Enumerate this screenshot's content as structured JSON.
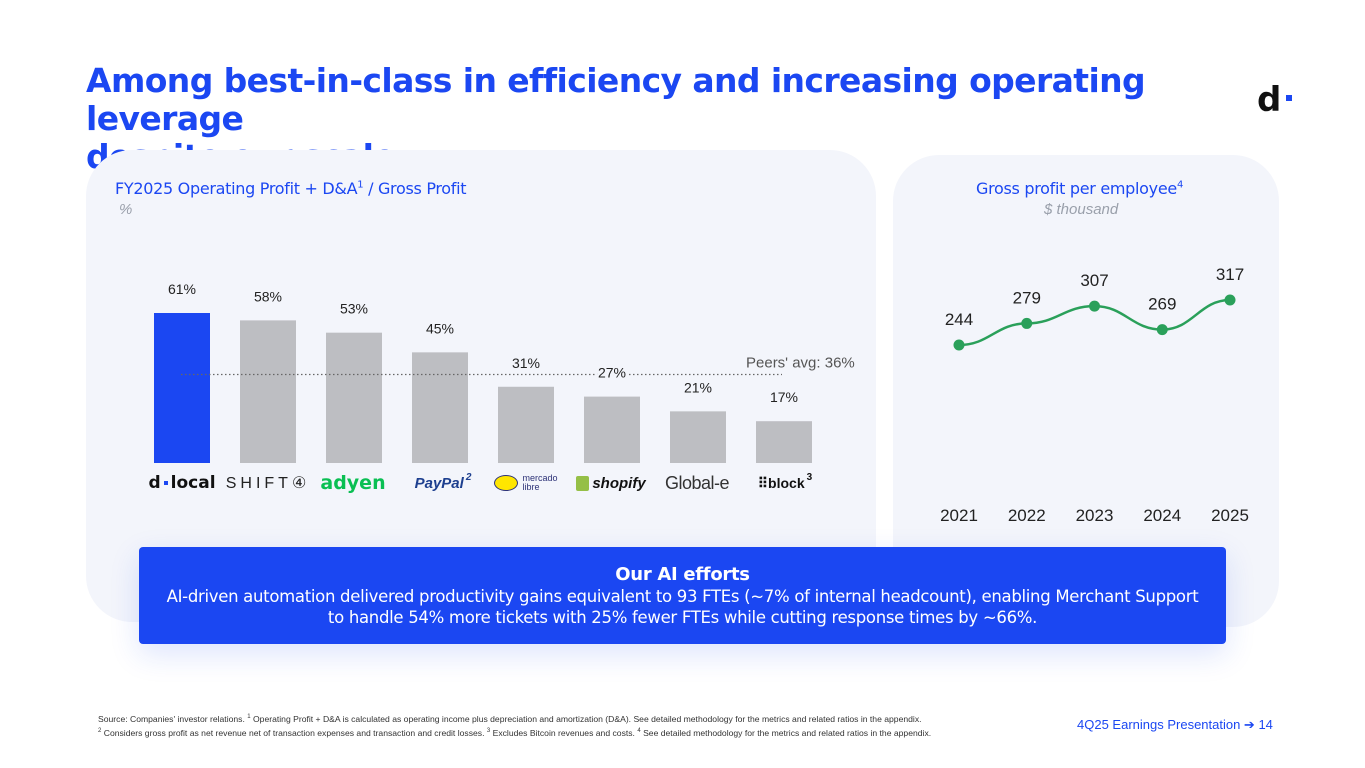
{
  "title": {
    "line1": "Among best-in-class in efficiency and increasing operating leverage",
    "line2": "despite our scale"
  },
  "logo": {
    "text": "d"
  },
  "left_chart": {
    "title": "FY2025 Operating Profit + D&A",
    "title_sup": "1",
    "title_suffix": " / Gross Profit",
    "unit": "%",
    "peers_avg_label": "Peers' avg: 36%"
  },
  "right_chart": {
    "title": "Gross profit per employee",
    "title_sup": "4",
    "unit": "$ thousand"
  },
  "brands": {
    "dlocal_a": "d",
    "dlocal_b": "local",
    "shift4": "SHIFT④",
    "adyen": "adyen",
    "paypal": "PayPal",
    "paypal_sup": "2",
    "mercado_a": "mercado",
    "mercado_b": "libre",
    "shopify": "shopify",
    "globale": "Global-e",
    "block": "⠿block",
    "block_sup": "3"
  },
  "ai_box": {
    "title": "Our AI efforts",
    "text": "AI-driven automation delivered productivity gains equivalent to 93 FTEs (~7% of internal headcount), enabling Merchant Support to handle 54% more tickets with 25% fewer FTEs while cutting response times by ~66%."
  },
  "footnote": {
    "a": "Source: Companies' investor relations. ",
    "sup1": "1",
    "b": " Operating Profit + D&A is calculated as operating income plus depreciation and amortization (D&A). See detailed methodology for the metrics and related ratios in the appendix.",
    "sup2": "2",
    "c": " Considers gross profit as net revenue net of transaction expenses and transaction and credit losses. ",
    "sup3": "3",
    "d": " Excludes Bitcoin revenues and costs. ",
    "sup4": "4",
    "e": " See detailed methodology for the metrics and related ratios in the appendix."
  },
  "page_ref": "4Q25 Earnings Presentation ➔  14",
  "colors": {
    "brand_blue": "#1b47f2",
    "bar_grey": "#bdbec2",
    "line_green": "#2aa05a",
    "panel_bg": "#f3f5fb"
  },
  "chart_data": [
    {
      "type": "bar",
      "title": "FY2025 Operating Profit + D&A / Gross Profit",
      "unit": "%",
      "categories": [
        "dLocal",
        "Shift4",
        "Adyen",
        "PayPal",
        "Mercado Libre",
        "Shopify",
        "Global-e",
        "Block"
      ],
      "values": [
        61,
        58,
        53,
        45,
        31,
        27,
        21,
        17
      ],
      "value_labels": [
        "61%",
        "58%",
        "53%",
        "45%",
        "31%",
        "27%",
        "21%",
        "17%"
      ],
      "highlight_index": 0,
      "reference_line": {
        "label": "Peers' avg: 36%",
        "value": 36,
        "style": "dotted"
      },
      "ylim": [
        0,
        61
      ],
      "grid": false
    },
    {
      "type": "line",
      "title": "Gross profit per employee",
      "unit": "$ thousand",
      "x": [
        "2021",
        "2022",
        "2023",
        "2024",
        "2025"
      ],
      "values": [
        244,
        279,
        307,
        269,
        317
      ],
      "value_labels": [
        "244",
        "279",
        "307",
        "269",
        "317"
      ],
      "grid": false
    }
  ]
}
